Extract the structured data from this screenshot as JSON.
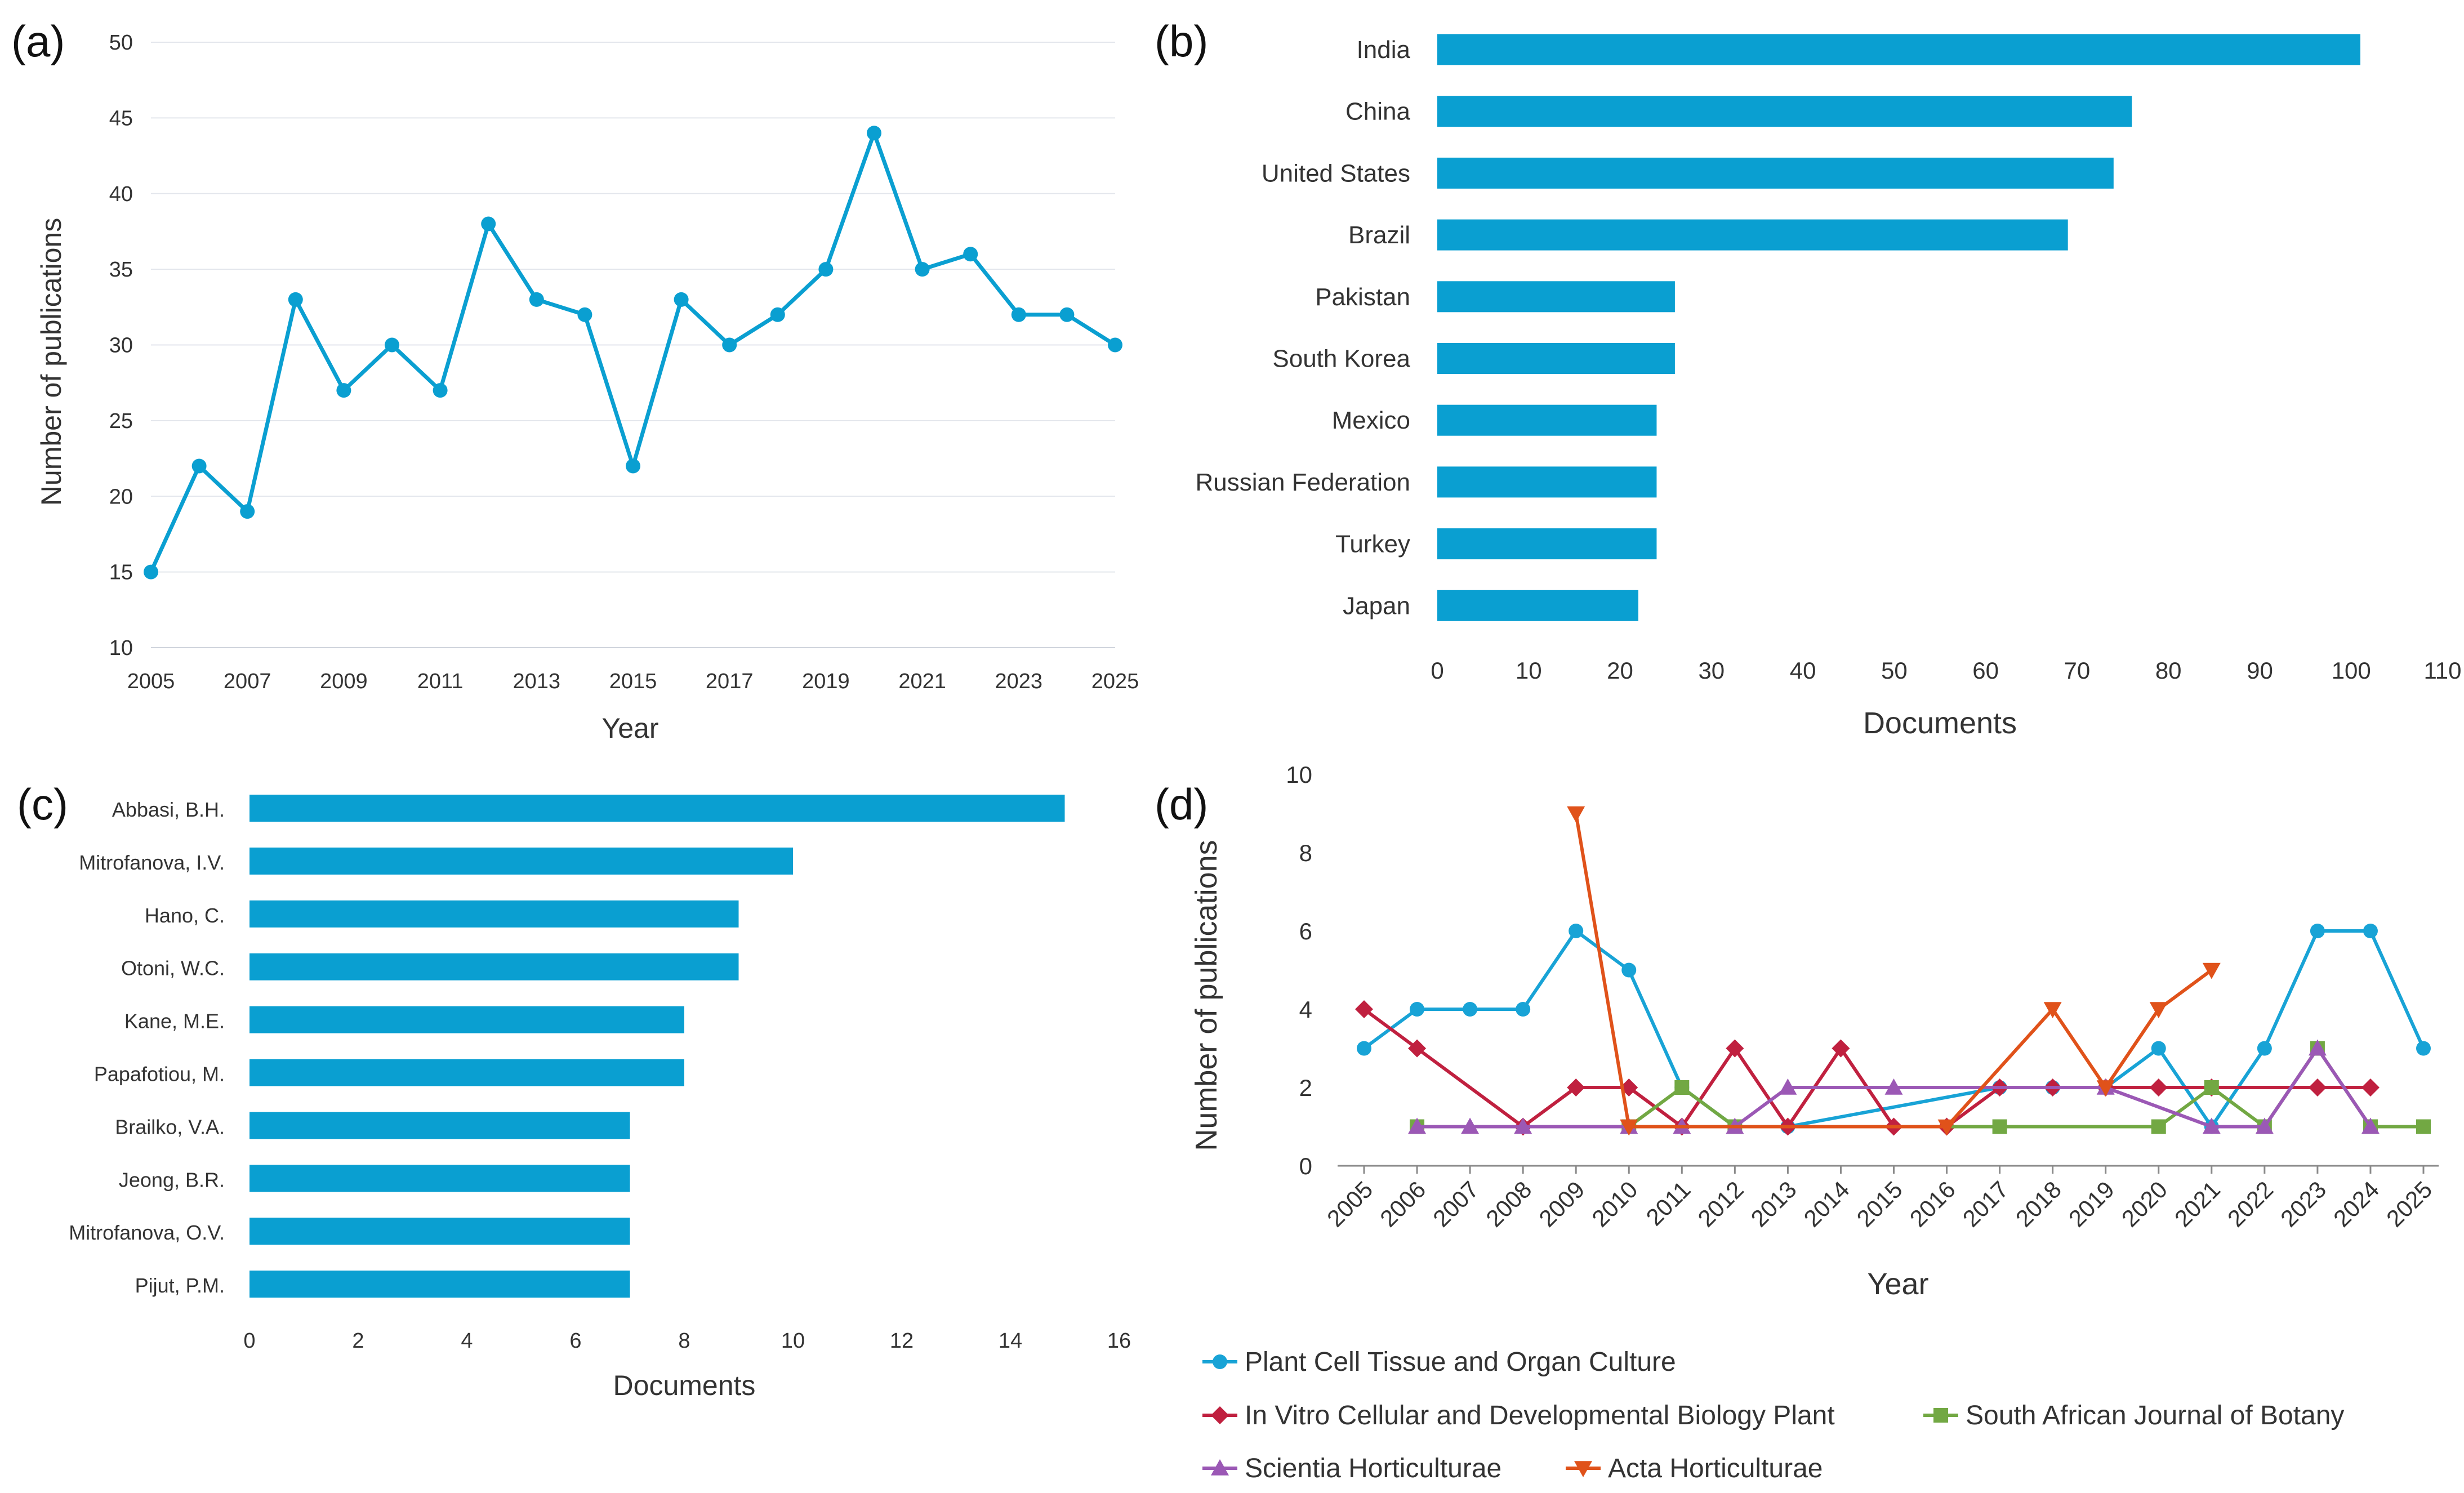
{
  "panels": {
    "a": {
      "label": "(a)"
    },
    "b": {
      "label": "(b)"
    },
    "c": {
      "label": "(c)"
    },
    "d": {
      "label": "(d)"
    }
  },
  "colors": {
    "bar": "#0a9fd1",
    "line_a": "#0a9fd1",
    "series_d": [
      "#18a3d6",
      "#c0203f",
      "#72a843",
      "#9b58b5",
      "#e0521a"
    ]
  },
  "chart_data": [
    {
      "id": "a",
      "type": "line",
      "title": "",
      "xlabel": "Year",
      "ylabel": "Number of publications",
      "x": [
        2005,
        2006,
        2007,
        2008,
        2009,
        2010,
        2011,
        2012,
        2013,
        2014,
        2015,
        2016,
        2017,
        2018,
        2019,
        2020,
        2021,
        2022,
        2023,
        2024,
        2025
      ],
      "values": [
        15,
        22,
        19,
        33,
        27,
        30,
        27,
        38,
        33,
        32,
        22,
        33,
        30,
        32,
        35,
        44,
        35,
        36,
        32,
        32,
        30
      ],
      "ylim": [
        10,
        50
      ],
      "yticks": [
        10,
        15,
        20,
        25,
        30,
        35,
        40,
        45,
        50
      ],
      "xticks": [
        2005,
        2007,
        2009,
        2011,
        2013,
        2015,
        2017,
        2019,
        2021,
        2023,
        2025
      ],
      "grid": true
    },
    {
      "id": "b",
      "type": "bar",
      "orientation": "horizontal",
      "title": "",
      "xlabel": "Documents",
      "ylabel": "",
      "categories": [
        "India",
        "China",
        "United States",
        "Brazil",
        "Pakistan",
        "South Korea",
        "Mexico",
        "Russian Federation",
        "Turkey",
        "Japan"
      ],
      "values": [
        101,
        76,
        74,
        69,
        26,
        26,
        24,
        24,
        24,
        22
      ],
      "xlim": [
        0,
        110
      ],
      "xticks": [
        0,
        10,
        20,
        30,
        40,
        50,
        60,
        70,
        80,
        90,
        100,
        110
      ],
      "grid": false
    },
    {
      "id": "c",
      "type": "bar",
      "orientation": "horizontal",
      "title": "",
      "xlabel": "Documents",
      "ylabel": "",
      "categories": [
        "Abbasi, B.H.",
        "Mitrofanova, I.V.",
        "Hano, C.",
        "Otoni, W.C.",
        "Kane, M.E.",
        "Papafotiou, M.",
        "Brailko, V.A.",
        "Jeong, B.R.",
        "Mitrofanova, O.V.",
        "Pijut, P.M."
      ],
      "values": [
        15,
        10,
        9,
        9,
        8,
        8,
        7,
        7,
        7,
        7
      ],
      "xlim": [
        0,
        16
      ],
      "xticks": [
        0,
        2,
        4,
        6,
        8,
        10,
        12,
        14,
        16
      ],
      "grid": false
    },
    {
      "id": "d",
      "type": "line",
      "title": "",
      "xlabel": "Year",
      "ylabel": "Number of publications",
      "x": [
        2005,
        2006,
        2007,
        2008,
        2009,
        2010,
        2011,
        2012,
        2013,
        2014,
        2015,
        2016,
        2017,
        2018,
        2019,
        2020,
        2021,
        2022,
        2023,
        2024,
        2025
      ],
      "ylim": [
        0,
        10
      ],
      "yticks": [
        0,
        2,
        4,
        6,
        8,
        10
      ],
      "grid": false,
      "series": [
        {
          "name": "Plant Cell Tissue and Organ Culture",
          "marker": "circle",
          "points": [
            [
              2005,
              3
            ],
            [
              2006,
              4
            ],
            [
              2007,
              4
            ],
            [
              2008,
              4
            ],
            [
              2009,
              6
            ],
            [
              2010,
              5
            ],
            [
              2011,
              2
            ],
            [
              2012,
              1
            ],
            [
              2013,
              1
            ],
            [
              2017,
              2
            ],
            [
              2018,
              2
            ],
            [
              2019,
              2
            ],
            [
              2020,
              3
            ],
            [
              2021,
              1
            ],
            [
              2022,
              3
            ],
            [
              2023,
              6
            ],
            [
              2024,
              6
            ],
            [
              2025,
              3
            ]
          ]
        },
        {
          "name": "In Vitro Cellular and Developmental Biology Plant",
          "marker": "diamond",
          "points": [
            [
              2005,
              4
            ],
            [
              2006,
              3
            ],
            [
              2008,
              1
            ],
            [
              2009,
              2
            ],
            [
              2010,
              2
            ],
            [
              2011,
              1
            ],
            [
              2012,
              3
            ],
            [
              2013,
              1
            ],
            [
              2014,
              3
            ],
            [
              2015,
              1
            ],
            [
              2016,
              1
            ],
            [
              2017,
              2
            ],
            [
              2018,
              2
            ],
            [
              2019,
              2
            ],
            [
              2020,
              2
            ],
            [
              2021,
              2
            ],
            [
              2023,
              2
            ],
            [
              2024,
              2
            ]
          ]
        },
        {
          "name": "South African Journal of Botany",
          "marker": "square",
          "points": [
            [
              2006,
              1
            ],
            [
              2010,
              1
            ],
            [
              2011,
              2
            ],
            [
              2012,
              1
            ],
            [
              2017,
              1
            ],
            [
              2020,
              1
            ],
            [
              2021,
              2
            ],
            [
              2022,
              1
            ],
            [
              2023,
              3
            ],
            [
              2024,
              1
            ],
            [
              2025,
              1
            ]
          ]
        },
        {
          "name": "Scientia Horticulturae",
          "marker": "triangle-up",
          "points": [
            [
              2006,
              1
            ],
            [
              2007,
              1
            ],
            [
              2008,
              1
            ],
            [
              2010,
              1
            ],
            [
              2011,
              1
            ],
            [
              2012,
              1
            ],
            [
              2013,
              2
            ],
            [
              2015,
              2
            ],
            [
              2019,
              2
            ],
            [
              2021,
              1
            ],
            [
              2022,
              1
            ],
            [
              2023,
              3
            ],
            [
              2024,
              1
            ]
          ]
        },
        {
          "name": "Acta Horticulturae",
          "marker": "triangle-down",
          "points": [
            [
              2009,
              9
            ],
            [
              2010,
              1
            ],
            [
              2016,
              1
            ],
            [
              2018,
              4
            ],
            [
              2019,
              2
            ],
            [
              2020,
              4
            ],
            [
              2021,
              5
            ]
          ]
        }
      ]
    }
  ]
}
